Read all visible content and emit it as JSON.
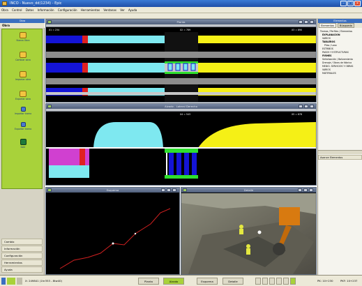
{
  "window": {
    "title": "INCO - Nuevo_dd(1234) - Epic"
  },
  "menu": [
    "Obra",
    "Control",
    "Datos",
    "Información",
    "Configuración",
    "Herramientas",
    "Ventanas",
    "Ver",
    "Ayuda"
  ],
  "left_panel": {
    "header": "Obra",
    "section_title": "Obra",
    "tools": [
      {
        "label": "Nueva Obra"
      },
      {
        "label": "Cambiar obra"
      },
      {
        "label": "Importar obra"
      },
      {
        "label": "Exportar obra"
      },
      {
        "label": "Importar tramo"
      },
      {
        "label": "Exportar tramo"
      },
      {
        "label": "Salir"
      }
    ],
    "sections": [
      "Cambio",
      "Información",
      "Configuración",
      "Herramientas",
      "Ayuda"
    ]
  },
  "views": {
    "plan": {
      "title": "Planta",
      "left_coord": "X1 = 234",
      "mid_coord": "X2 = 789",
      "right_coord": "X3 = 890"
    },
    "section": {
      "title": "Alzado - Lateral Derecho",
      "mid_coord": "X4 = 543",
      "right_coord": "X5 = 678"
    },
    "profile": {
      "title": "Esquema"
    },
    "photo": {
      "title": "Detalle"
    }
  },
  "right_panel": {
    "header": "Elementos",
    "tabs": [
      "Elementos",
      "Búsqueda"
    ],
    "tree": [
      "Tramos / Perfiles / Elementos",
      "EXPLANACIÓN",
      "VARIOS",
      "TABLEROS",
      "Pilas / Losa",
      "ESTRIBOS",
      "PASOS Y ESTRUCTURAS",
      "FIRMES",
      "Señalización / Balizamiento",
      "Drenaje / Obras de fábrica",
      "MEDIO. SERVICIOS Y OBRAS",
      "VARIOS",
      "MATERIALES"
    ],
    "lower_header": "Avance Elementos"
  },
  "status": {
    "coords": "X: 249841 (1hr353 - 8tw40)",
    "buttons": [
      "Planta",
      "Alzado",
      "Esquema",
      "Detalle"
    ],
    "active_button": "Alzado",
    "readout1": "PK: 10+230",
    "readout2": "PKF: 10+237"
  },
  "colors": {
    "green_panel": "#a8d23a",
    "view_bg": "#000000",
    "cyan": "#7ee8f0",
    "yellow": "#f5f016",
    "blue": "#1414d6",
    "magenta": "#d040d0"
  }
}
